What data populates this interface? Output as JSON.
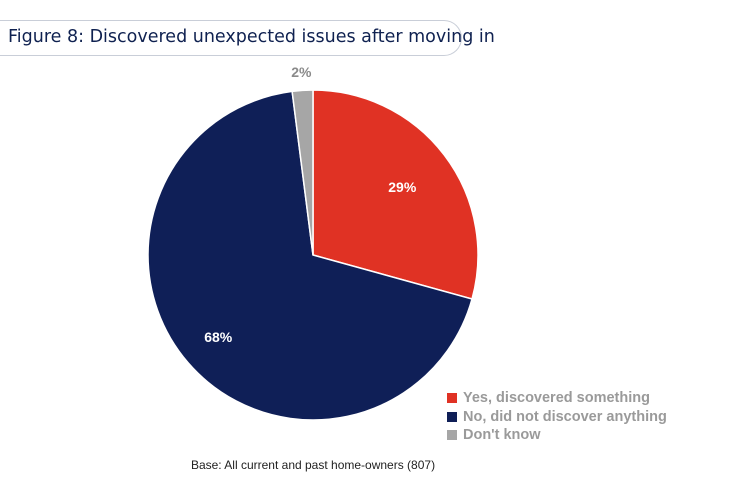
{
  "title": "Figure 8: Discovered unexpected issues after moving in",
  "footnote": "Base: All current and past home-owners (807)",
  "chart_data": {
    "type": "pie",
    "title": "Figure 8: Discovered unexpected issues after moving in",
    "slices": [
      {
        "label": "Yes, discovered something",
        "value": 29,
        "display": "29%",
        "color": "#e03224",
        "label_color": "#ffffff"
      },
      {
        "label": "No, did not discover anything",
        "value": 68,
        "display": "68%",
        "color": "#0f1f57",
        "label_color": "#ffffff"
      },
      {
        "label": "Don't know",
        "value": 2,
        "display": "2%",
        "color": "#a6a6a6",
        "label_color": "#8a8a8a"
      }
    ],
    "legend_position": "bottom-right"
  }
}
